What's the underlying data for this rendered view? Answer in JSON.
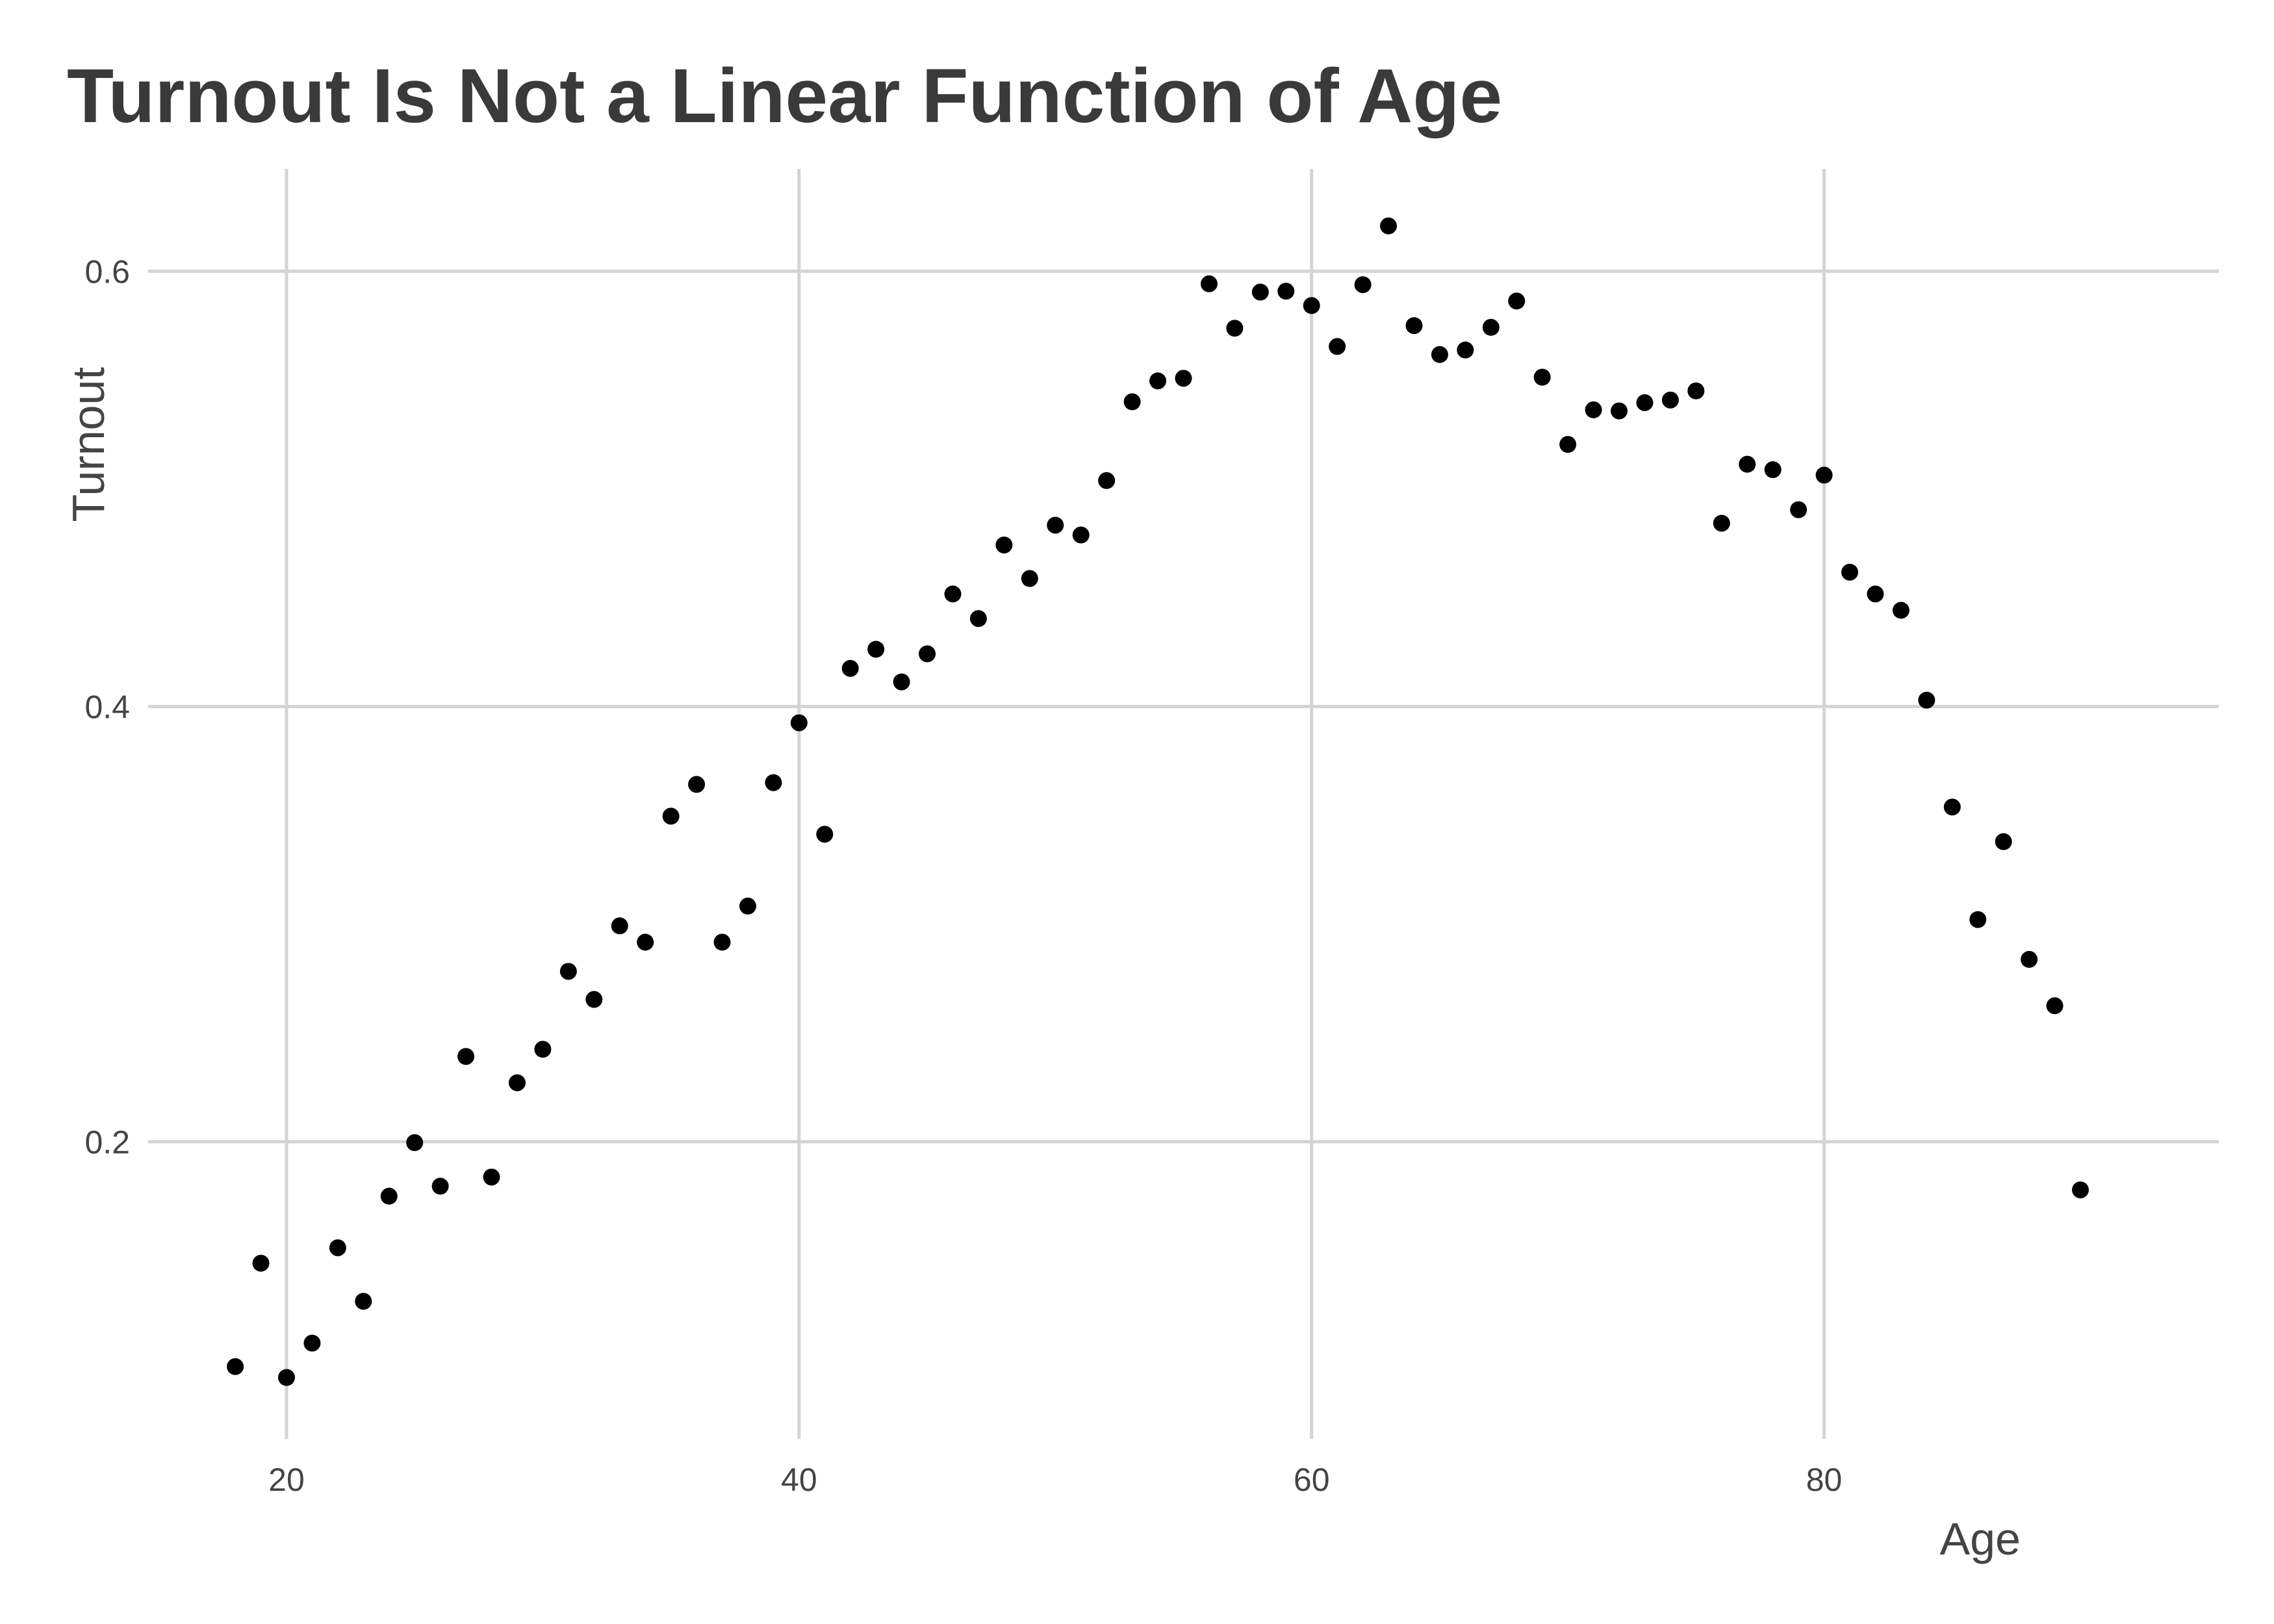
{
  "chart_data": {
    "type": "scatter",
    "title": "Turnout Is Not a Linear Function of Age",
    "xlabel": "Age",
    "ylabel": "Turnout",
    "xlim": [
      14.6,
      95.4
    ],
    "ylim": [
      0.0635,
      0.647
    ],
    "x_ticks": [
      20,
      40,
      60,
      80
    ],
    "y_ticks": [
      0.2,
      0.4,
      0.6
    ],
    "x_tick_labels": [
      "20",
      "40",
      "60",
      "80"
    ],
    "y_tick_labels": [
      "0.2",
      "0.4",
      "0.6"
    ],
    "grid": true,
    "legend": "none",
    "point_color": "#000000",
    "points": [
      [
        18,
        0.0967
      ],
      [
        19,
        0.1442
      ],
      [
        20,
        0.0917
      ],
      [
        21,
        0.1075
      ],
      [
        22,
        0.1513
      ],
      [
        23,
        0.1267
      ],
      [
        24,
        0.175
      ],
      [
        25,
        0.1996
      ],
      [
        26,
        0.1796
      ],
      [
        27,
        0.2392
      ],
      [
        28,
        0.1838
      ],
      [
        29,
        0.2271
      ],
      [
        30,
        0.2425
      ],
      [
        31,
        0.2783
      ],
      [
        32,
        0.2654
      ],
      [
        33,
        0.2992
      ],
      [
        34,
        0.2917
      ],
      [
        35,
        0.3496
      ],
      [
        36,
        0.3642
      ],
      [
        37,
        0.2917
      ],
      [
        38,
        0.3083
      ],
      [
        39,
        0.365
      ],
      [
        40,
        0.3925
      ],
      [
        41,
        0.3413
      ],
      [
        42,
        0.4175
      ],
      [
        43,
        0.4263
      ],
      [
        44,
        0.4113
      ],
      [
        45,
        0.4242
      ],
      [
        46,
        0.4517
      ],
      [
        47,
        0.4404
      ],
      [
        48,
        0.4742
      ],
      [
        49,
        0.4588
      ],
      [
        50,
        0.4833
      ],
      [
        51,
        0.4788
      ],
      [
        52,
        0.5038
      ],
      [
        53,
        0.54
      ],
      [
        54,
        0.5496
      ],
      [
        55,
        0.5508
      ],
      [
        56,
        0.5942
      ],
      [
        57,
        0.5738
      ],
      [
        58,
        0.5904
      ],
      [
        59,
        0.5908
      ],
      [
        60,
        0.5842
      ],
      [
        61,
        0.5654
      ],
      [
        62,
        0.5938
      ],
      [
        63,
        0.6208
      ],
      [
        64,
        0.575
      ],
      [
        65,
        0.5617
      ],
      [
        66,
        0.5638
      ],
      [
        67,
        0.5742
      ],
      [
        68,
        0.5863
      ],
      [
        69,
        0.5513
      ],
      [
        70,
        0.5204
      ],
      [
        71,
        0.5363
      ],
      [
        72,
        0.5358
      ],
      [
        73,
        0.5396
      ],
      [
        74,
        0.5408
      ],
      [
        75,
        0.545
      ],
      [
        76,
        0.4842
      ],
      [
        77,
        0.5113
      ],
      [
        78,
        0.5088
      ],
      [
        79,
        0.4904
      ],
      [
        80,
        0.5063
      ],
      [
        81,
        0.4617
      ],
      [
        82,
        0.4517
      ],
      [
        83,
        0.4442
      ],
      [
        84,
        0.4029
      ],
      [
        85,
        0.3538
      ],
      [
        86,
        0.3021
      ],
      [
        87,
        0.3379
      ],
      [
        88,
        0.2838
      ],
      [
        89,
        0.2625
      ],
      [
        90,
        0.1779
      ]
    ]
  }
}
